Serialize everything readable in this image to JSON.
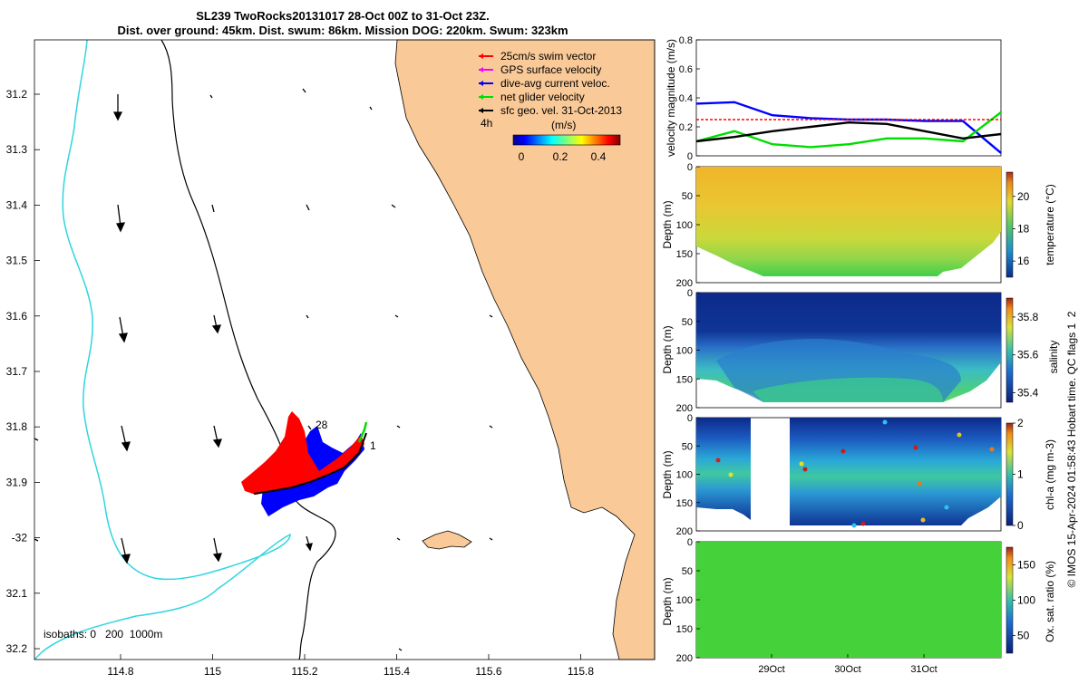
{
  "header": {
    "line1": "SL239 TwoRocks20131017 28-Oct 00Z to 31-Oct 23Z.",
    "line2": "Dist. over ground: 45km. Dist. swum: 86km. Mission DOG: 220km. Swum: 323km"
  },
  "colors": {
    "land": "#f9c998",
    "isobath_200": "#000000",
    "isobath_1000": "#30d5e0",
    "swim_vector": "#ff0000",
    "gps_velocity": "#ff00ff",
    "current": "#0000ff",
    "glider_velocity": "#00dd00",
    "geo_velocity": "#000000"
  },
  "map": {
    "legend": [
      {
        "label": "25cm/s swim vector",
        "color": "#ff0000"
      },
      {
        "label": "GPS surface velocity",
        "color": "#ff00ff"
      },
      {
        "label": "dive-avg current veloc.",
        "color": "#0000ff"
      },
      {
        "label": "net glider velocity",
        "color": "#00dd00"
      },
      {
        "label": "sfc geo. vel. 31-Oct-2013",
        "color": "#000000"
      }
    ],
    "time_label": "4h",
    "colorbar_unit": "(m/s)",
    "colorbar_ticks": [
      "0",
      "0.2",
      "0.4"
    ],
    "lat_ticks": [
      "31.2",
      "31.3",
      "31.4",
      "31.5",
      "31.6",
      "31.7",
      "31.8",
      "31.9",
      "-32",
      "32.1",
      "32.2"
    ],
    "lon_ticks": [
      "114.8",
      "115",
      "115.2",
      "115.4",
      "115.6",
      "115.8"
    ],
    "track_labels": {
      "start": "1",
      "end": "28"
    },
    "isobaths_label": "isobaths: 0   200  1000m"
  },
  "chart_data": [
    {
      "type": "line",
      "title": "",
      "ylabel": "velocity magnitude (m/s)",
      "ylim": [
        0,
        0.8
      ],
      "yticks": [
        "0",
        "0.2",
        "0.4",
        "0.6",
        "0.8"
      ],
      "x_days": [
        0,
        0.5,
        1,
        1.5,
        2,
        2.5,
        3,
        3.5,
        4
      ],
      "series": [
        {
          "name": "dive-avg current veloc.",
          "color": "#0000ff",
          "values": [
            0.36,
            0.37,
            0.28,
            0.26,
            0.25,
            0.25,
            0.24,
            0.24,
            0.02
          ]
        },
        {
          "name": "net glider velocity",
          "color": "#00dd00",
          "values": [
            0.1,
            0.17,
            0.08,
            0.06,
            0.08,
            0.12,
            0.12,
            0.1,
            0.3
          ]
        },
        {
          "name": "sfc geo. vel.",
          "color": "#000000",
          "values": [
            0.1,
            0.13,
            0.17,
            0.2,
            0.23,
            0.22,
            0.17,
            0.12,
            0.15
          ]
        },
        {
          "name": "25cm/s swim vector",
          "color": "#ff0000",
          "values": [
            0.25,
            0.25,
            0.25,
            0.25,
            0.25,
            0.25,
            0.25,
            0.25,
            0.25
          ]
        }
      ]
    },
    {
      "type": "heatmap",
      "ylabel": "Depth (m)",
      "ylim": [
        200,
        0
      ],
      "yticks": [
        "0",
        "50",
        "100",
        "150",
        "200"
      ],
      "colorbar_label": "temperature (°C)",
      "colorbar_ticks": [
        "16",
        "18",
        "20"
      ],
      "colorbar_range": [
        15,
        21.5
      ],
      "profile_max_depth": [
        175,
        185,
        190,
        190,
        190,
        190,
        180,
        150
      ]
    },
    {
      "type": "heatmap",
      "ylabel": "Depth (m)",
      "ylim": [
        200,
        0
      ],
      "yticks": [
        "0",
        "50",
        "100",
        "150",
        "200"
      ],
      "colorbar_label": "salinity",
      "colorbar_ticks": [
        "35.4",
        "35.6",
        "35.8"
      ],
      "colorbar_range": [
        35.35,
        35.9
      ],
      "side_note": "© IMOS 15-Apr-2024 01:58:43 Hobart time. QC flags 1  2"
    },
    {
      "type": "heatmap",
      "ylabel": "Depth (m)",
      "ylim": [
        200,
        0
      ],
      "yticks": [
        "0",
        "50",
        "100",
        "150",
        "200"
      ],
      "colorbar_label": "chl-a (mg m-3)",
      "colorbar_ticks": [
        "0",
        "1",
        "2"
      ],
      "colorbar_range": [
        0,
        2
      ]
    },
    {
      "type": "heatmap",
      "ylabel": "Depth (m)",
      "ylim": [
        200,
        0
      ],
      "yticks": [
        "0",
        "50",
        "100",
        "150",
        "200"
      ],
      "xticks": [
        "29Oct",
        "30Oct",
        "31Oct"
      ],
      "colorbar_label": "Ox. sat. ratio (%)",
      "colorbar_ticks": [
        "50",
        "100",
        "150"
      ],
      "colorbar_range": [
        25,
        175
      ]
    }
  ]
}
